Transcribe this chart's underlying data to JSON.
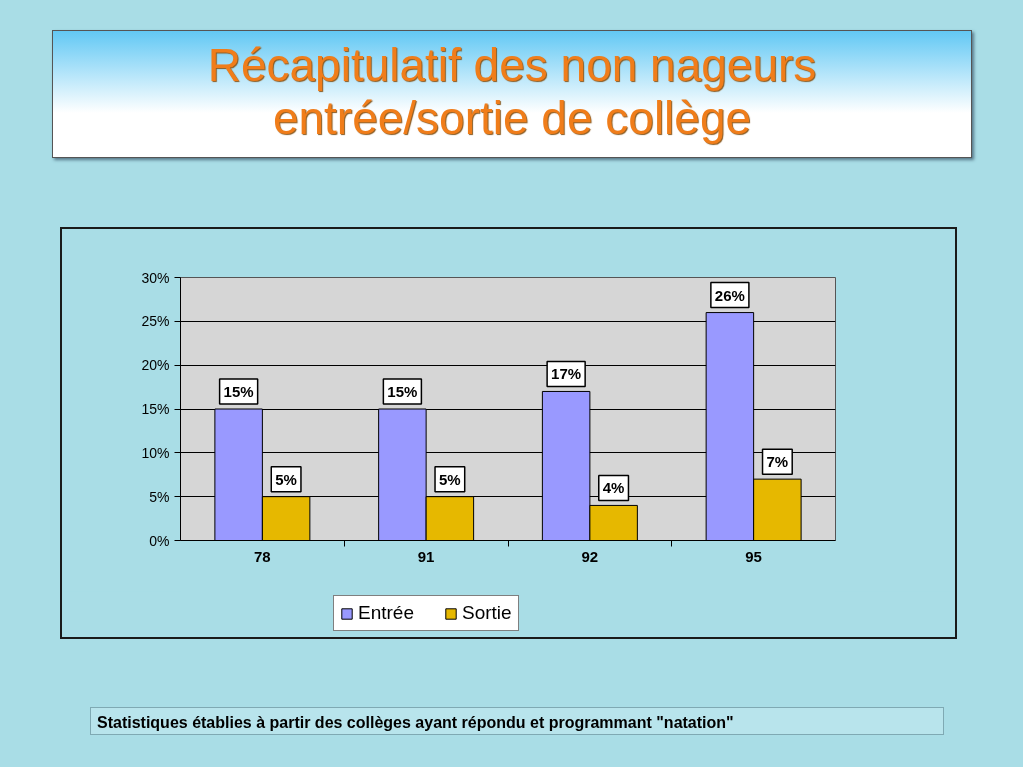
{
  "chart_data": {
    "type": "bar",
    "title": "Récapitulatif des non nageurs entrée/sortie de collège",
    "categories": [
      "78",
      "91",
      "92",
      "95"
    ],
    "series": [
      {
        "name": "Entrée",
        "color": "#9999ff",
        "values": [
          15,
          15,
          17,
          26
        ],
        "value_labels": [
          "15%",
          "15%",
          "17%",
          "26%"
        ]
      },
      {
        "name": "Sortie",
        "color": "#e6b800",
        "values": [
          5,
          5,
          4,
          7
        ],
        "value_labels": [
          "5%",
          "5%",
          "4%",
          "7%"
        ]
      }
    ],
    "ylim": [
      0,
      30
    ],
    "yticks": [
      {
        "value": 0,
        "label": "0%"
      },
      {
        "value": 5,
        "label": "5%"
      },
      {
        "value": 10,
        "label": "10%"
      },
      {
        "value": 15,
        "label": "15%"
      },
      {
        "value": 20,
        "label": "20%"
      },
      {
        "value": 25,
        "label": "25%"
      },
      {
        "value": 30,
        "label": "30%"
      }
    ],
    "grid": "y",
    "legend": "bottom",
    "annotations": [
      "Statistiques établies à partir des collèges ayant répondu et programmant \"natation\""
    ]
  }
}
